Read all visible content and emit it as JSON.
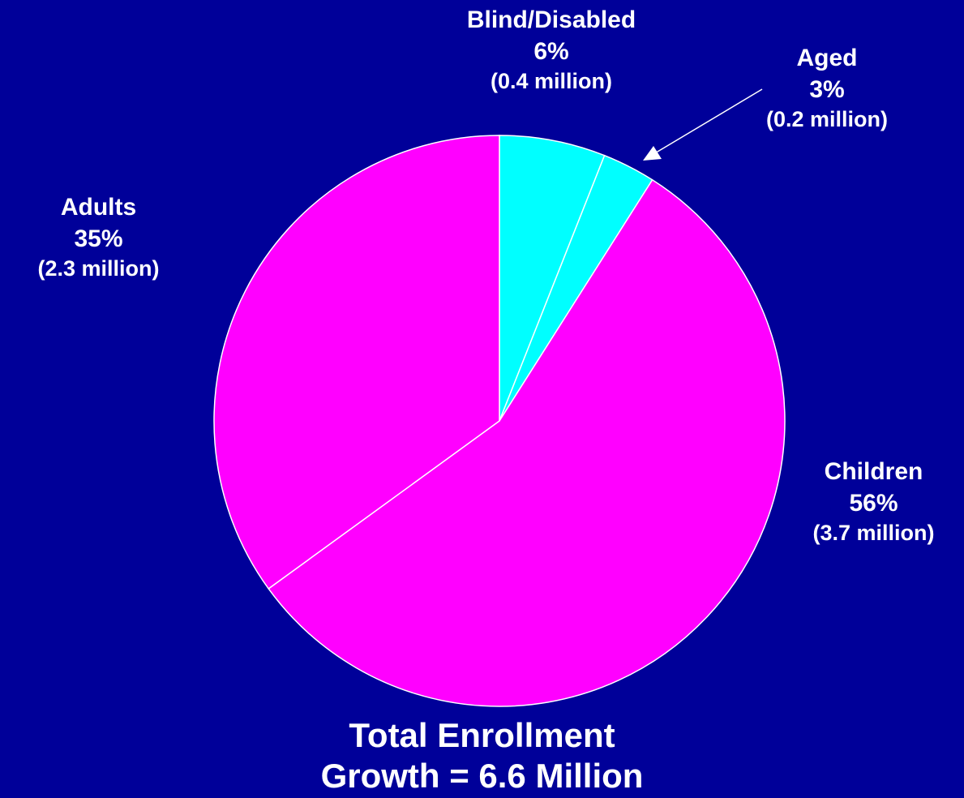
{
  "chart_data": {
    "type": "pie",
    "slices": [
      {
        "name": "Blind/Disabled",
        "pct_label": "6%",
        "percent": 6,
        "amount_label": "(0.4 million)",
        "color": "#00FFFF"
      },
      {
        "name": "Aged",
        "pct_label": "3%",
        "percent": 3,
        "amount_label": "(0.2 million)",
        "color": "#00FFFF"
      },
      {
        "name": "Children",
        "pct_label": "56%",
        "percent": 56,
        "amount_label": "(3.7 million)",
        "color": "#FF00FF"
      },
      {
        "name": "Adults",
        "pct_label": "35%",
        "percent": 35,
        "amount_label": "(2.3 million)",
        "color": "#FF00FF"
      }
    ],
    "caption_line1": "Total Enrollment",
    "caption_line2": "Growth = 6.6 Million",
    "colors": {
      "background": "#000099",
      "text": "#FFFFFF",
      "slice_outline": "#FFFFFF"
    }
  }
}
